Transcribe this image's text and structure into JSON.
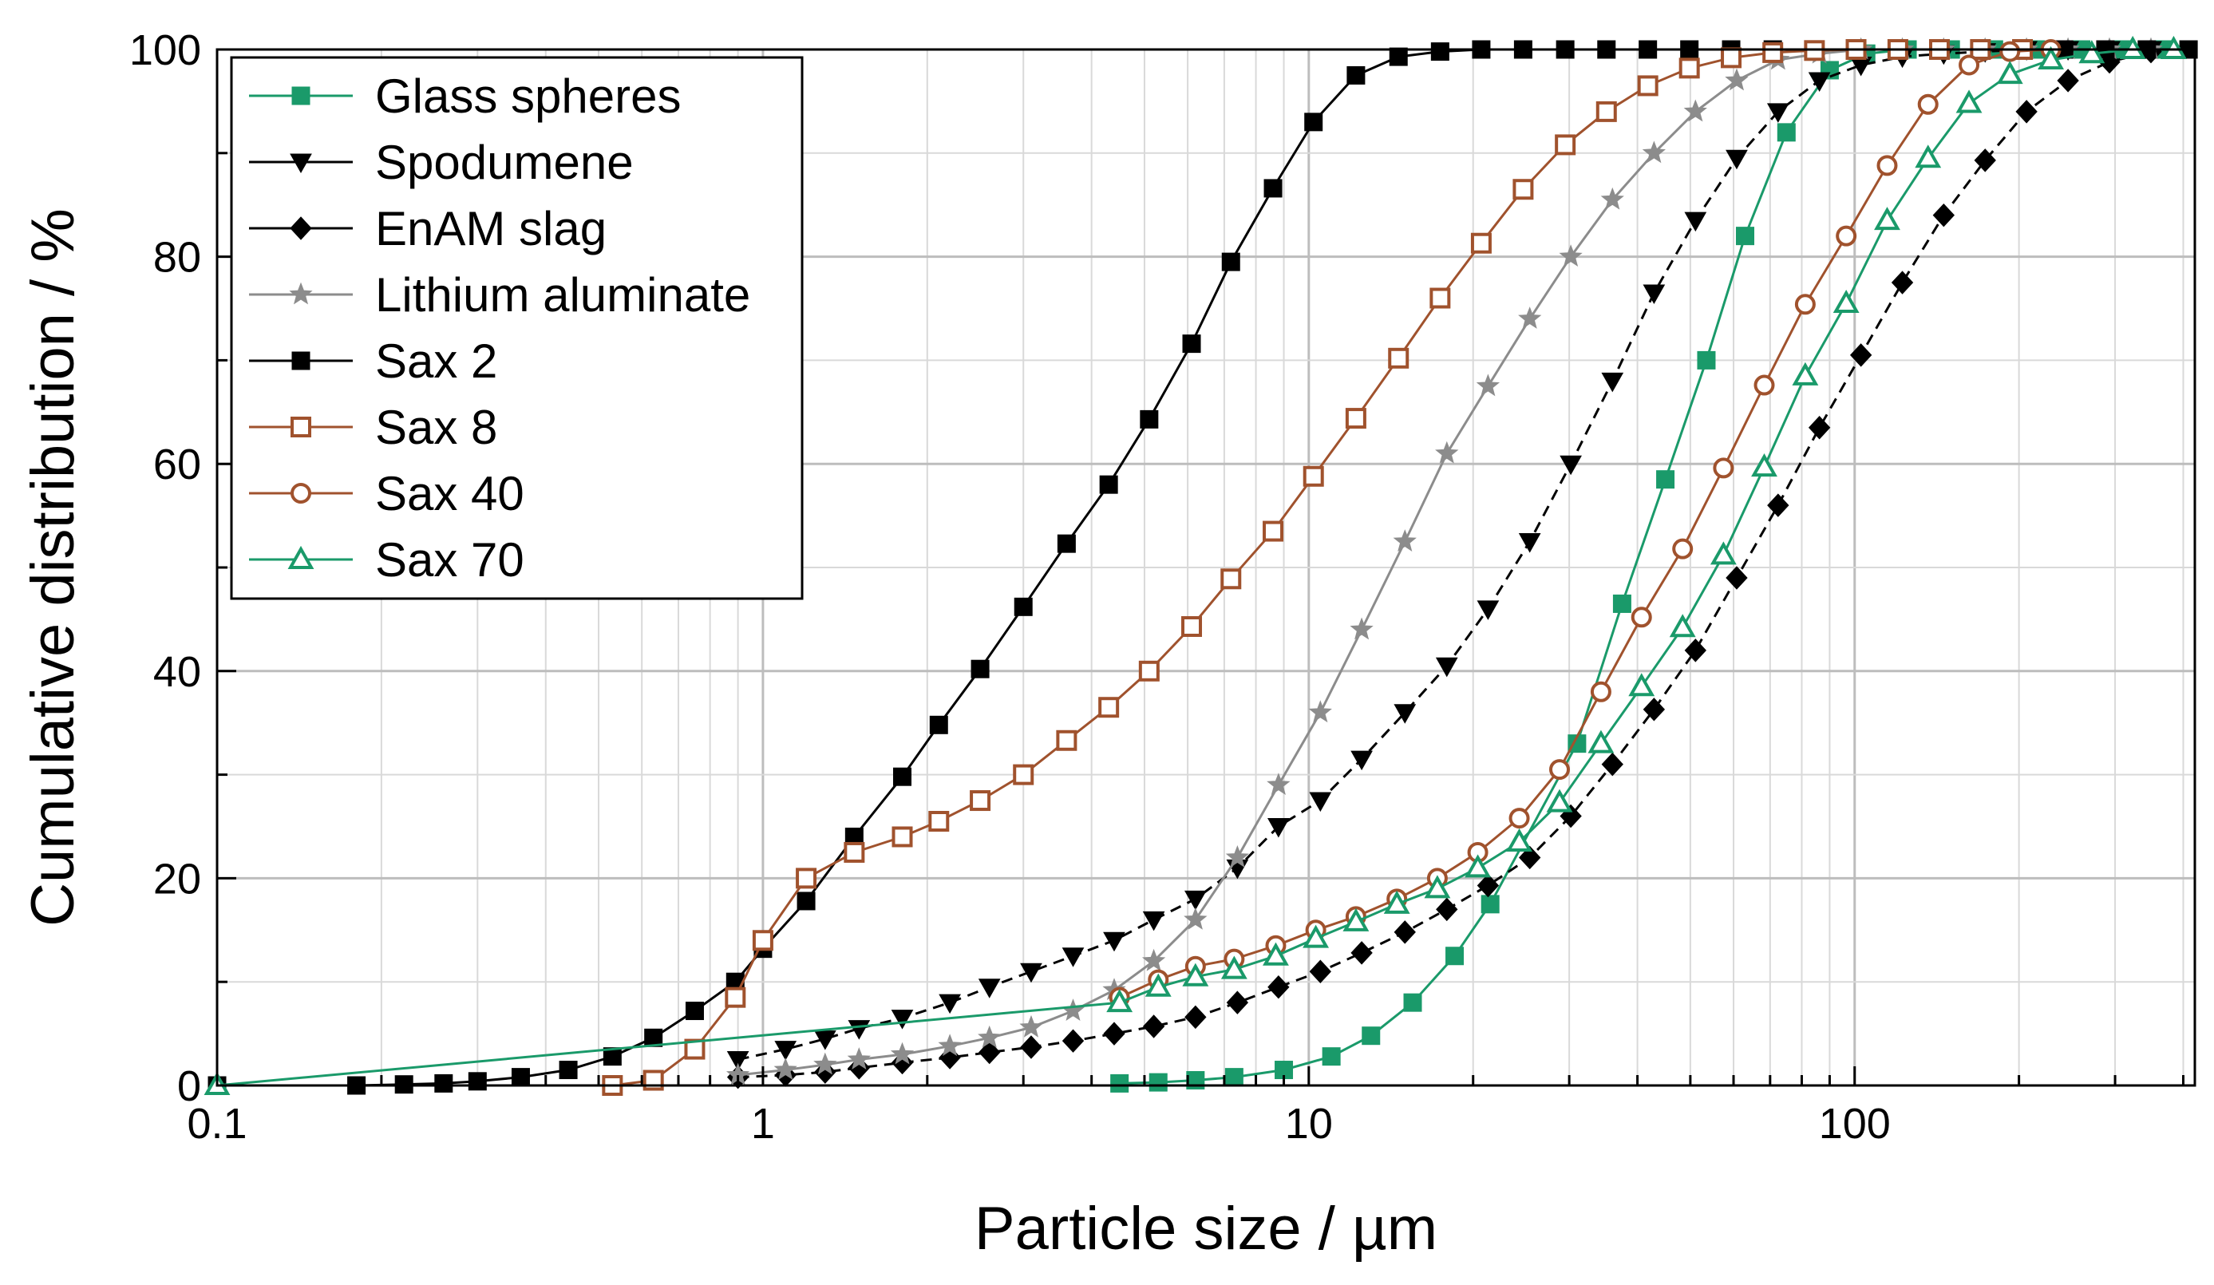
{
  "chart_data": {
    "type": "line",
    "xscale": "log",
    "xlabel": "Particle size / µm",
    "ylabel": "Cumulative distribution / %",
    "xlim": [
      0.1,
      420
    ],
    "ylim": [
      0,
      100
    ],
    "xticks": [
      0.1,
      1,
      10,
      100
    ],
    "xtick_labels": [
      "0.1",
      "1",
      "10",
      "100"
    ],
    "yticks": [
      0,
      20,
      40,
      60,
      80,
      100
    ],
    "ytick_labels": [
      "0",
      "20",
      "40",
      "60",
      "80",
      "100"
    ],
    "grid": true,
    "legend_position": "top-left",
    "series": [
      {
        "name": "Glass spheres",
        "color": "#1a9a6a",
        "marker": "square-filled",
        "line": "solid",
        "x": [
          4.5,
          5.3,
          6.2,
          7.3,
          9.0,
          11.0,
          13.0,
          15.5,
          18.5,
          21.5,
          31.0,
          37.5,
          45.0,
          53.5,
          63.0,
          75.0,
          90.0,
          105.0,
          125.0,
          150.0,
          180.0,
          215.0,
          260.0,
          310.0,
          370.0,
          420.0
        ],
        "y": [
          0.2,
          0.3,
          0.5,
          0.8,
          1.5,
          2.8,
          4.8,
          8.0,
          12.5,
          17.5,
          33.0,
          46.5,
          58.5,
          70.0,
          82.0,
          92.0,
          98.0,
          99.6,
          100,
          100,
          100,
          100,
          100,
          100,
          100,
          100
        ]
      },
      {
        "name": "Spodumene",
        "color": "#000000",
        "marker": "triangle-down-filled",
        "line": "dashed",
        "x": [
          0.9,
          1.1,
          1.3,
          1.5,
          1.8,
          2.2,
          2.6,
          3.1,
          3.7,
          4.4,
          5.2,
          6.2,
          7.4,
          8.8,
          10.5,
          12.5,
          15.0,
          17.9,
          21.3,
          25.4,
          30.2,
          36.0,
          42.9,
          51.1,
          60.8,
          72.4,
          86.2,
          102.7,
          122.3,
          145.6,
          173.4,
          206.5,
          246.0,
          293.0,
          349.0,
          415.0
        ],
        "y": [
          2.5,
          3.5,
          4.5,
          5.5,
          6.5,
          8.0,
          9.5,
          11.0,
          12.5,
          14.0,
          16.0,
          18.0,
          21.0,
          25.0,
          27.5,
          31.5,
          36.0,
          40.5,
          46.0,
          52.5,
          60.0,
          68.0,
          76.5,
          83.5,
          89.5,
          94.0,
          97.0,
          98.5,
          99.3,
          99.6,
          99.8,
          100,
          100,
          100,
          100,
          100
        ]
      },
      {
        "name": "EnAM slag",
        "color": "#000000",
        "marker": "diamond-filled",
        "line": "dashed",
        "x": [
          0.9,
          1.1,
          1.3,
          1.5,
          1.8,
          2.2,
          2.6,
          3.1,
          3.7,
          4.4,
          5.2,
          6.2,
          7.4,
          8.8,
          10.5,
          12.5,
          15.0,
          17.9,
          21.3,
          25.4,
          30.2,
          36.0,
          42.9,
          51.1,
          60.8,
          72.4,
          86.2,
          102.7,
          122.3,
          145.6,
          173.4,
          206.5,
          246.0,
          293.0,
          349.0,
          415.0
        ],
        "y": [
          0.8,
          1.0,
          1.3,
          1.7,
          2.2,
          2.7,
          3.2,
          3.7,
          4.3,
          5.0,
          5.7,
          6.6,
          8.0,
          9.5,
          11.0,
          12.8,
          14.8,
          17.0,
          19.3,
          22.0,
          26.0,
          31.0,
          36.3,
          42.0,
          49.0,
          56.0,
          63.5,
          70.5,
          77.5,
          84.0,
          89.3,
          94.0,
          97.0,
          98.8,
          99.8,
          100
        ]
      },
      {
        "name": "Lithium aluminate",
        "color": "#8c8c8c",
        "marker": "star-filled",
        "line": "solid",
        "x": [
          0.9,
          1.1,
          1.3,
          1.5,
          1.8,
          2.2,
          2.6,
          3.1,
          3.7,
          4.4,
          5.2,
          6.2,
          7.4,
          8.8,
          10.5,
          12.5,
          15.0,
          17.9,
          21.3,
          25.4,
          30.2,
          36.0,
          42.9,
          51.1,
          60.8,
          72.4,
          86.2,
          102.7,
          122.3,
          145.6,
          173.4,
          206.5,
          246.0,
          293.0,
          349.0,
          415.0
        ],
        "y": [
          1.0,
          1.5,
          2.0,
          2.5,
          3.0,
          3.8,
          4.6,
          5.6,
          7.2,
          9.2,
          12.0,
          16.0,
          22.0,
          29.0,
          36.0,
          44.0,
          52.5,
          61.0,
          67.5,
          74.0,
          80.0,
          85.5,
          90.0,
          94.0,
          97.0,
          99.0,
          99.6,
          100,
          100,
          100,
          100,
          100,
          100,
          100,
          100,
          100
        ]
      },
      {
        "name": "Sax 2",
        "color": "#000000",
        "marker": "square-filled",
        "line": "solid",
        "x": [
          0.1,
          0.18,
          0.22,
          0.26,
          0.3,
          0.36,
          0.44,
          0.53,
          0.63,
          0.75,
          0.89,
          1.0,
          1.2,
          1.47,
          1.8,
          2.1,
          2.5,
          3.0,
          3.6,
          4.3,
          5.1,
          6.1,
          7.2,
          8.6,
          10.2,
          12.2,
          14.6,
          17.4,
          20.7,
          24.7,
          29.5,
          35.1,
          41.8,
          49.8,
          59.4,
          70.8,
          84.4,
          100.6,
          120.0,
          143.0,
          170.0,
          203.0,
          242.0,
          288.0,
          343.0,
          409.0
        ],
        "y": [
          0,
          0,
          0.1,
          0.2,
          0.4,
          0.8,
          1.5,
          2.8,
          4.6,
          7.2,
          10.0,
          13.2,
          17.8,
          24.0,
          29.8,
          34.8,
          40.2,
          46.2,
          52.3,
          58.0,
          64.3,
          71.6,
          79.5,
          86.6,
          93.0,
          97.5,
          99.3,
          99.8,
          100,
          100,
          100,
          100,
          100,
          100,
          100,
          100,
          100,
          100,
          100,
          100,
          100,
          100,
          100,
          100,
          100,
          100
        ]
      },
      {
        "name": "Sax 8",
        "color": "#a0522d",
        "marker": "square-open",
        "line": "solid",
        "x": [
          0.53,
          0.63,
          0.75,
          0.89,
          1.0,
          1.2,
          1.47,
          1.8,
          2.1,
          2.5,
          3.0,
          3.6,
          4.3,
          5.1,
          6.1,
          7.2,
          8.6,
          10.2,
          12.2,
          14.6,
          17.4,
          20.7,
          24.7,
          29.5,
          35.1,
          41.8,
          49.8,
          59.4,
          70.8,
          84.4,
          100.6,
          120.0,
          143.0,
          170.0,
          203.0
        ],
        "y": [
          0,
          0.5,
          3.5,
          8.5,
          14.0,
          20.0,
          22.5,
          24.0,
          25.5,
          27.5,
          30.0,
          33.3,
          36.5,
          40.0,
          44.3,
          48.9,
          53.5,
          58.8,
          64.4,
          70.2,
          76.0,
          81.3,
          86.5,
          90.8,
          94.0,
          96.5,
          98.2,
          99.2,
          99.7,
          99.9,
          100,
          100,
          100,
          100,
          100
        ]
      },
      {
        "name": "Sax 40",
        "color": "#a0522d",
        "marker": "circle-open",
        "line": "solid",
        "x": [
          4.5,
          5.3,
          6.2,
          7.3,
          8.7,
          10.3,
          12.2,
          14.5,
          17.2,
          20.4,
          24.3,
          28.8,
          34.3,
          40.7,
          48.4,
          57.5,
          68.3,
          81.2,
          96.5,
          114.7,
          136.3,
          162.0,
          192.5,
          228.8
        ],
        "y": [
          8.5,
          10.2,
          11.5,
          12.2,
          13.5,
          15.0,
          16.3,
          18.0,
          20.0,
          22.5,
          25.8,
          30.5,
          38.0,
          45.2,
          51.8,
          59.6,
          67.6,
          75.4,
          82.0,
          88.8,
          94.7,
          98.5,
          99.8,
          100
        ]
      },
      {
        "name": "Sax 70",
        "color": "#1a9a6a",
        "marker": "triangle-up-open",
        "line": "solid",
        "x": [
          0.1,
          4.5,
          5.3,
          6.2,
          7.3,
          8.7,
          10.3,
          12.2,
          14.5,
          17.2,
          20.4,
          24.3,
          28.8,
          34.3,
          40.7,
          48.4,
          57.5,
          68.3,
          81.2,
          96.5,
          114.7,
          136.3,
          162.0,
          192.5,
          228.8,
          271.9,
          323.2,
          384.1,
          420.0
        ],
        "y": [
          0,
          8.0,
          9.5,
          10.5,
          11.2,
          12.5,
          14.2,
          15.8,
          17.5,
          19.0,
          21.0,
          23.5,
          27.3,
          33.0,
          38.5,
          44.2,
          51.2,
          59.7,
          68.5,
          75.5,
          83.5,
          89.5,
          94.8,
          97.6,
          99.0,
          99.6,
          100,
          100,
          100
        ]
      }
    ]
  }
}
